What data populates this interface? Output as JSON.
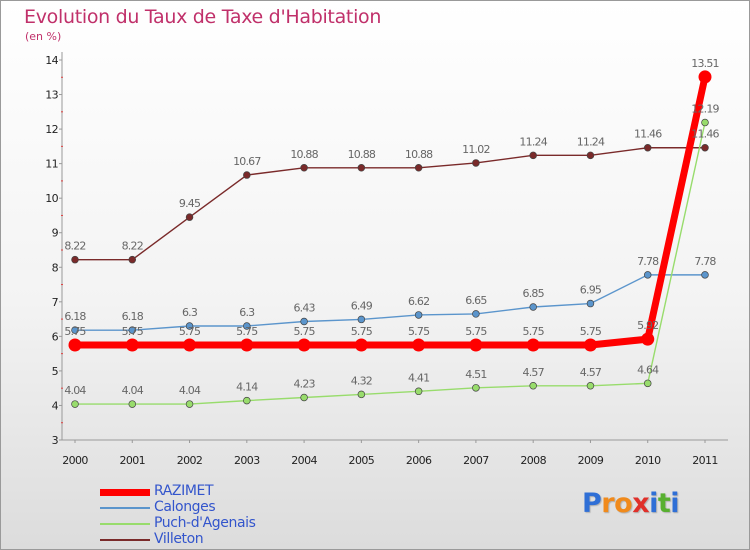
{
  "title": "Evolution du Taux de Taxe d'Habitation",
  "subtitle": "(en %)",
  "brand": {
    "text": "Proxiti",
    "letters": [
      "P",
      "r",
      "o",
      "x",
      "i",
      "t",
      "i"
    ],
    "colors": [
      "#2f6fd6",
      "#f08a1c",
      "#f08a1c",
      "#e0302a",
      "#2f6fd6",
      "#58b030",
      "#2f6fd6"
    ]
  },
  "chart_data": {
    "type": "line",
    "x": [
      "2000",
      "2001",
      "2002",
      "2003",
      "2004",
      "2005",
      "2006",
      "2007",
      "2008",
      "2009",
      "2010",
      "2011"
    ],
    "ylim": [
      3,
      14
    ],
    "yticks": [
      3,
      4,
      5,
      6,
      7,
      8,
      9,
      10,
      11,
      12,
      13,
      14
    ],
    "grid": false,
    "legend_position": "bottom-left",
    "series": [
      {
        "name": "Villeton",
        "color": "#7a2a2a",
        "values": [
          8.22,
          8.22,
          9.45,
          10.67,
          10.88,
          10.88,
          10.88,
          11.02,
          11.24,
          11.24,
          11.46,
          11.46
        ]
      },
      {
        "name": "Calonges",
        "color": "#5b95cc",
        "values": [
          6.18,
          6.18,
          6.3,
          6.3,
          6.43,
          6.49,
          6.62,
          6.65,
          6.85,
          6.95,
          7.78,
          7.78
        ]
      },
      {
        "name": "Puch-d'Agenais",
        "color": "#98dc6c",
        "values": [
          4.04,
          4.04,
          4.04,
          4.14,
          4.23,
          4.32,
          4.41,
          4.51,
          4.57,
          4.57,
          4.64,
          12.19
        ]
      },
      {
        "name": "RAZIMET",
        "color": "#ff0000",
        "values": [
          5.75,
          5.75,
          5.75,
          5.75,
          5.75,
          5.75,
          5.75,
          5.75,
          5.75,
          5.75,
          5.92,
          13.51
        ]
      }
    ],
    "legend_order": [
      "RAZIMET",
      "Calonges",
      "Puch-d'Agenais",
      "Villeton"
    ]
  }
}
